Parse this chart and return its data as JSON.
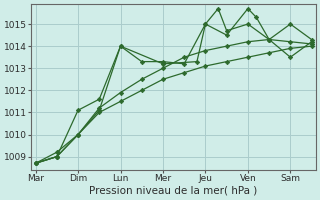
{
  "background_color": "#d0ede8",
  "grid_color": "#aacccc",
  "line_color": "#2d6a2d",
  "marker_color": "#2d6a2d",
  "xlabel": "Pression niveau de la mer( hPa )",
  "xtick_labels": [
    "Mar",
    "Dim",
    "Lun",
    "Mer",
    "Jeu",
    "Ven",
    "Sam"
  ],
  "xtick_positions": [
    0,
    1,
    2,
    3,
    4,
    5,
    6
  ],
  "ytick_values": [
    1009,
    1010,
    1011,
    1012,
    1013,
    1014,
    1015
  ],
  "ylim": [
    1008.4,
    1015.9
  ],
  "xlim": [
    -0.1,
    6.6
  ],
  "series": [
    {
      "x": [
        0.0,
        0.5,
        1.0,
        1.5,
        2.0,
        2.5,
        3.0,
        3.5,
        4.0,
        4.3,
        4.5,
        5.0,
        5.5,
        6.0,
        6.5
      ],
      "y": [
        1008.7,
        1009.0,
        1011.1,
        1011.6,
        1014.0,
        1013.3,
        1013.3,
        1013.2,
        1015.0,
        1015.7,
        1014.7,
        1015.0,
        1014.3,
        1015.0,
        1014.3
      ]
    },
    {
      "x": [
        0.0,
        0.5,
        1.0,
        1.5,
        2.0,
        3.0,
        3.8,
        4.0,
        4.5,
        5.0,
        5.2,
        5.5,
        6.0,
        6.5
      ],
      "y": [
        1008.7,
        1009.0,
        1010.0,
        1011.1,
        1014.0,
        1013.2,
        1013.3,
        1015.0,
        1014.5,
        1015.7,
        1015.3,
        1014.3,
        1013.5,
        1014.2
      ]
    },
    {
      "x": [
        0.0,
        0.5,
        1.0,
        1.5,
        2.0,
        2.5,
        3.0,
        3.5,
        4.0,
        4.5,
        5.0,
        5.5,
        6.0,
        6.5
      ],
      "y": [
        1008.7,
        1009.0,
        1010.0,
        1011.2,
        1011.9,
        1012.5,
        1013.0,
        1013.5,
        1013.8,
        1014.0,
        1014.2,
        1014.3,
        1014.2,
        1014.1
      ]
    },
    {
      "x": [
        0.0,
        0.5,
        1.0,
        1.5,
        2.0,
        2.5,
        3.0,
        3.5,
        4.0,
        4.5,
        5.0,
        5.5,
        6.0,
        6.5
      ],
      "y": [
        1008.7,
        1009.2,
        1010.0,
        1011.0,
        1011.5,
        1012.0,
        1012.5,
        1012.8,
        1013.1,
        1013.3,
        1013.5,
        1013.7,
        1013.9,
        1014.0
      ]
    }
  ]
}
